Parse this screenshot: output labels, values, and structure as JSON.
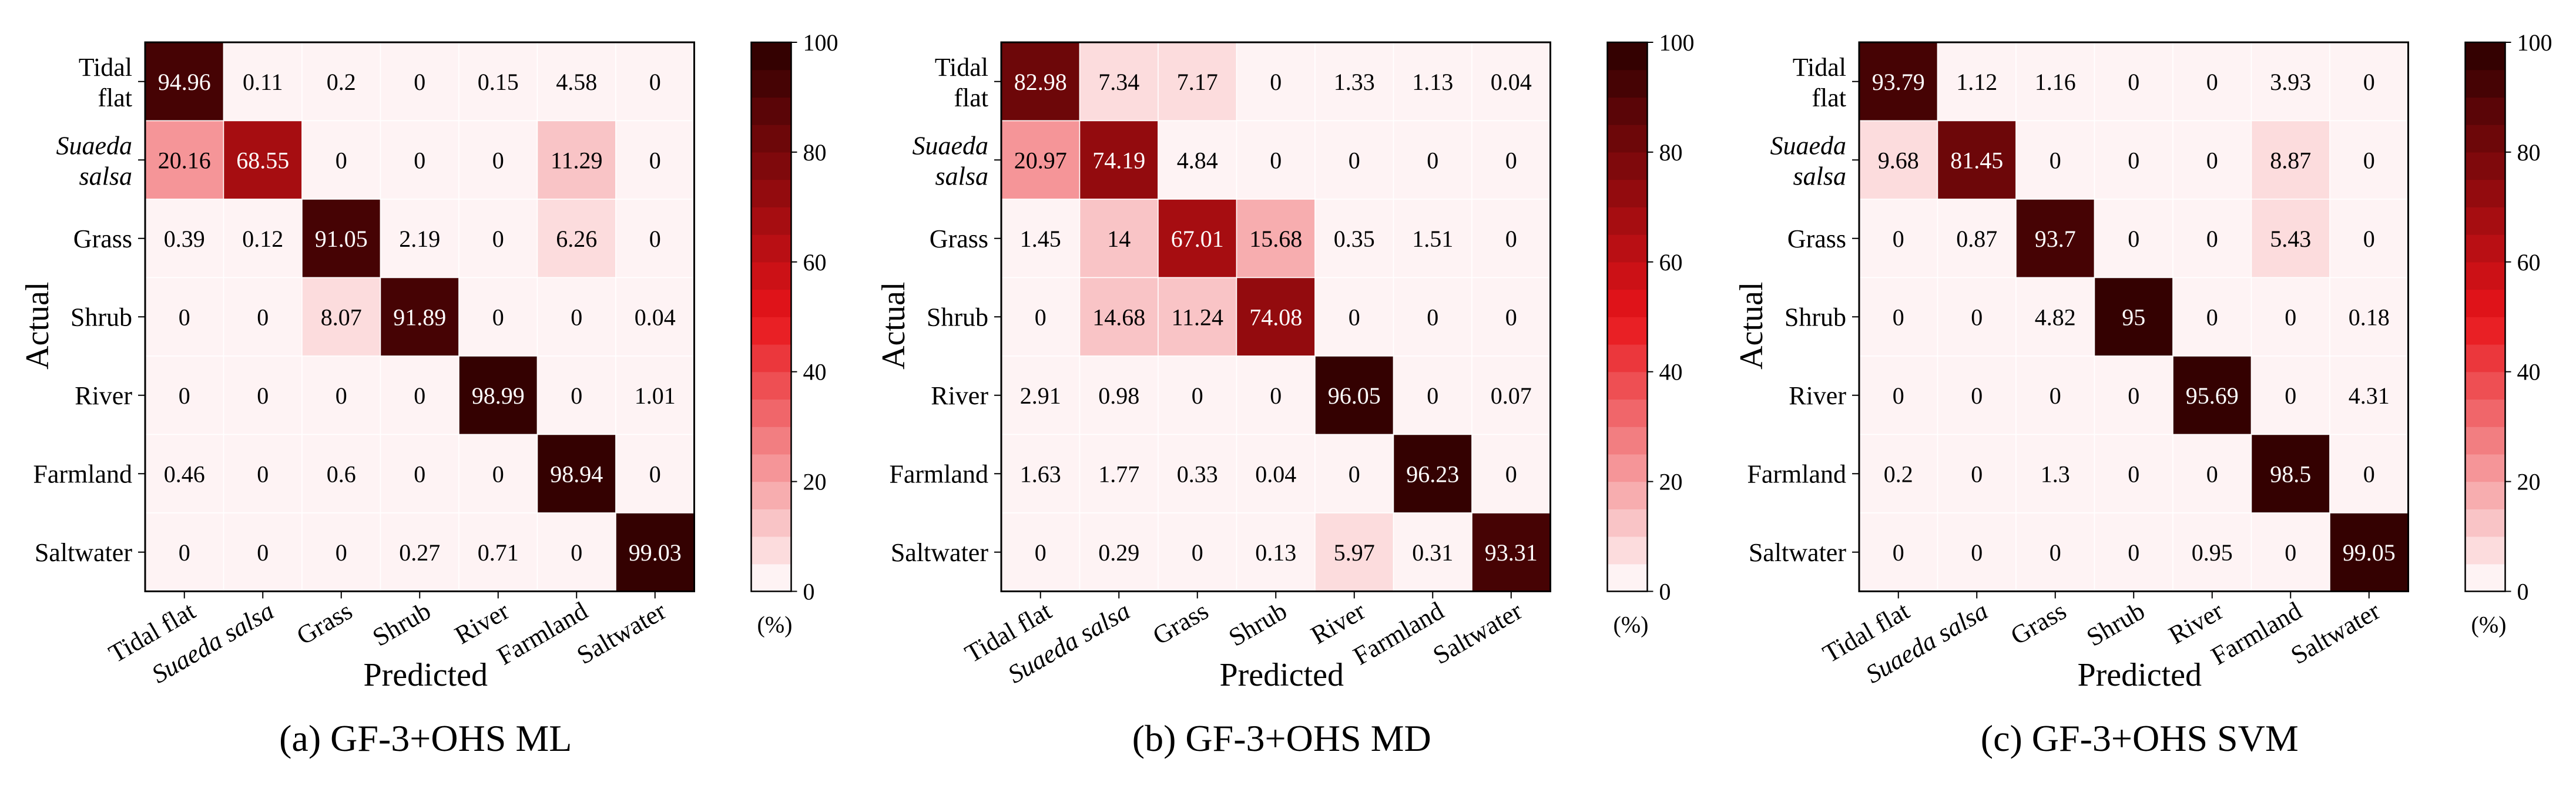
{
  "chart_data": [
    {
      "type": "heatmap",
      "caption": "(a) GF-3+OHS ML",
      "xlabel": "Predicted",
      "ylabel": "Actual",
      "row_labels": [
        {
          "lines": [
            "Tidal",
            "flat"
          ],
          "italic": false
        },
        {
          "lines": [
            "Suaeda",
            "salsa"
          ],
          "italic": true
        },
        {
          "lines": [
            "Grass"
          ],
          "italic": false
        },
        {
          "lines": [
            "Shrub"
          ],
          "italic": false
        },
        {
          "lines": [
            "River"
          ],
          "italic": false
        },
        {
          "lines": [
            "Farmland"
          ],
          "italic": false
        },
        {
          "lines": [
            "Saltwater"
          ],
          "italic": false
        }
      ],
      "col_labels": [
        {
          "text": "Tidal flat",
          "italic": false
        },
        {
          "text": "Suaeda salsa",
          "italic": true
        },
        {
          "text": "Grass",
          "italic": false
        },
        {
          "text": "Shrub",
          "italic": false
        },
        {
          "text": "River",
          "italic": false
        },
        {
          "text": "Farmland",
          "italic": false
        },
        {
          "text": "Saltwater",
          "italic": false
        }
      ],
      "matrix": [
        [
          "94.96",
          "0.11",
          "0.2",
          "0",
          "0.15",
          "4.58",
          "0"
        ],
        [
          "20.16",
          "68.55",
          "0",
          "0",
          "0",
          "11.29",
          "0"
        ],
        [
          "0.39",
          "0.12",
          "91.05",
          "2.19",
          "0",
          "6.26",
          "0"
        ],
        [
          "0",
          "0",
          "8.07",
          "91.89",
          "0",
          "0",
          "0.04"
        ],
        [
          "0",
          "0",
          "0",
          "0",
          "98.99",
          "0",
          "1.01"
        ],
        [
          "0.46",
          "0",
          "0.6",
          "0",
          "0",
          "98.94",
          "0"
        ],
        [
          "0",
          "0",
          "0",
          "0.27",
          "0.71",
          "0",
          "99.03"
        ]
      ],
      "colorbar": {
        "min": 0,
        "max": 100,
        "ticks": [
          "0",
          "20",
          "40",
          "60",
          "80",
          "100"
        ],
        "unit_label": "(%)"
      }
    },
    {
      "type": "heatmap",
      "caption": "(b) GF-3+OHS MD",
      "xlabel": "Predicted",
      "ylabel": "Actual",
      "row_labels": [
        {
          "lines": [
            "Tidal",
            "flat"
          ],
          "italic": false
        },
        {
          "lines": [
            "Suaeda",
            "salsa"
          ],
          "italic": true
        },
        {
          "lines": [
            "Grass"
          ],
          "italic": false
        },
        {
          "lines": [
            "Shrub"
          ],
          "italic": false
        },
        {
          "lines": [
            "River"
          ],
          "italic": false
        },
        {
          "lines": [
            "Farmland"
          ],
          "italic": false
        },
        {
          "lines": [
            "Saltwater"
          ],
          "italic": false
        }
      ],
      "col_labels": [
        {
          "text": "Tidal flat",
          "italic": false
        },
        {
          "text": "Suaeda salsa",
          "italic": true
        },
        {
          "text": "Grass",
          "italic": false
        },
        {
          "text": "Shrub",
          "italic": false
        },
        {
          "text": "River",
          "italic": false
        },
        {
          "text": "Farmland",
          "italic": false
        },
        {
          "text": "Saltwater",
          "italic": false
        }
      ],
      "matrix": [
        [
          "82.98",
          "7.34",
          "7.17",
          "0",
          "1.33",
          "1.13",
          "0.04"
        ],
        [
          "20.97",
          "74.19",
          "4.84",
          "0",
          "0",
          "0",
          "0"
        ],
        [
          "1.45",
          "14",
          "67.01",
          "15.68",
          "0.35",
          "1.51",
          "0"
        ],
        [
          "0",
          "14.68",
          "11.24",
          "74.08",
          "0",
          "0",
          "0"
        ],
        [
          "2.91",
          "0.98",
          "0",
          "0",
          "96.05",
          "0",
          "0.07"
        ],
        [
          "1.63",
          "1.77",
          "0.33",
          "0.04",
          "0",
          "96.23",
          "0"
        ],
        [
          "0",
          "0.29",
          "0",
          "0.13",
          "5.97",
          "0.31",
          "93.31"
        ]
      ],
      "colorbar": {
        "min": 0,
        "max": 100,
        "ticks": [
          "0",
          "20",
          "40",
          "60",
          "80",
          "100"
        ],
        "unit_label": "(%)"
      }
    },
    {
      "type": "heatmap",
      "caption": "(c) GF-3+OHS SVM",
      "xlabel": "Predicted",
      "ylabel": "Actual",
      "row_labels": [
        {
          "lines": [
            "Tidal",
            "flat"
          ],
          "italic": false
        },
        {
          "lines": [
            "Suaeda",
            "salsa"
          ],
          "italic": true
        },
        {
          "lines": [
            "Grass"
          ],
          "italic": false
        },
        {
          "lines": [
            "Shrub"
          ],
          "italic": false
        },
        {
          "lines": [
            "River"
          ],
          "italic": false
        },
        {
          "lines": [
            "Farmland"
          ],
          "italic": false
        },
        {
          "lines": [
            "Saltwater"
          ],
          "italic": false
        }
      ],
      "col_labels": [
        {
          "text": "Tidal flat",
          "italic": false
        },
        {
          "text": "Suaeda salsa",
          "italic": true
        },
        {
          "text": "Grass",
          "italic": false
        },
        {
          "text": "Shrub",
          "italic": false
        },
        {
          "text": "River",
          "italic": false
        },
        {
          "text": "Farmland",
          "italic": false
        },
        {
          "text": "Saltwater",
          "italic": false
        }
      ],
      "matrix": [
        [
          "93.79",
          "1.12",
          "1.16",
          "0",
          "0",
          "3.93",
          "0"
        ],
        [
          "9.68",
          "81.45",
          "0",
          "0",
          "0",
          "8.87",
          "0"
        ],
        [
          "0",
          "0.87",
          "93.7",
          "0",
          "0",
          "5.43",
          "0"
        ],
        [
          "0",
          "0",
          "4.82",
          "95",
          "0",
          "0",
          "0.18"
        ],
        [
          "0",
          "0",
          "0",
          "0",
          "95.69",
          "0",
          "4.31"
        ],
        [
          "0.2",
          "0",
          "1.3",
          "0",
          "0",
          "98.5",
          "0"
        ],
        [
          "0",
          "0",
          "0",
          "0",
          "0.95",
          "0",
          "99.05"
        ]
      ],
      "colorbar": {
        "min": 0,
        "max": 100,
        "ticks": [
          "0",
          "20",
          "40",
          "60",
          "80",
          "100"
        ],
        "unit_label": "(%)"
      }
    }
  ],
  "colors": {
    "low": "#ffffff",
    "mid": "#e8141a",
    "high": "#2a0000",
    "light_text": "#ffffff",
    "dark_text": "#000000"
  }
}
